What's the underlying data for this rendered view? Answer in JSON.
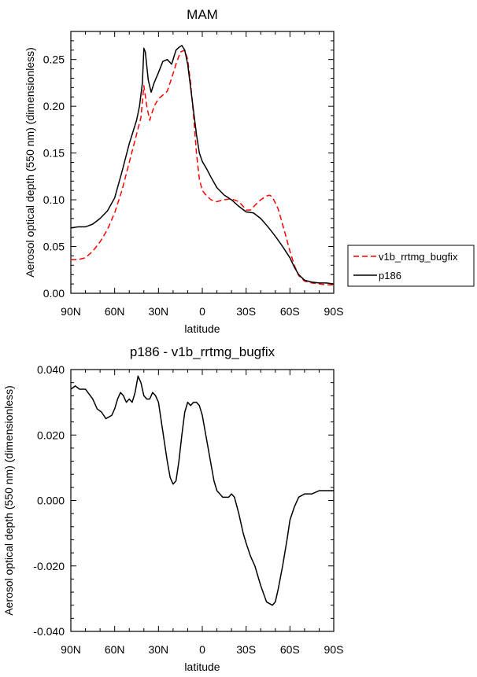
{
  "chart_data": [
    {
      "type": "line",
      "title": "MAM",
      "xlabel": "latitude",
      "ylabel": "Aerosol optical depth (550 nm) (dimensionless)",
      "xlim": [
        90,
        -90
      ],
      "ylim": [
        0,
        0.28
      ],
      "x_ticks": [
        90,
        60,
        30,
        0,
        -30,
        -60,
        -90
      ],
      "x_tick_labels": [
        "90N",
        "60N",
        "30N",
        "0",
        "30S",
        "60S",
        "90S"
      ],
      "y_ticks": [
        0,
        0.05,
        0.1,
        0.15,
        0.2,
        0.25
      ],
      "y_tick_labels": [
        "0.00",
        "0.05",
        "0.10",
        "0.15",
        "0.20",
        "0.25"
      ],
      "legend_position": "right",
      "series": [
        {
          "name": "v1b_rrtmg_bugfix",
          "color": "#ff0000",
          "dash": "dashed",
          "x": [
            90,
            85,
            80,
            75,
            70,
            65,
            60,
            55,
            50,
            45,
            42,
            40,
            38,
            36,
            33,
            30,
            27,
            24,
            21,
            18,
            15,
            12,
            10,
            8,
            6,
            4,
            2,
            0,
            -3,
            -6,
            -10,
            -15,
            -20,
            -25,
            -28,
            -30,
            -33,
            -36,
            -40,
            -44,
            -46,
            -48,
            -52,
            -56,
            -60,
            -63,
            -66,
            -70,
            -75,
            -80,
            -85,
            -90
          ],
          "values": [
            0.036,
            0.036,
            0.038,
            0.045,
            0.055,
            0.068,
            0.086,
            0.11,
            0.14,
            0.17,
            0.188,
            0.222,
            0.2,
            0.185,
            0.2,
            0.208,
            0.212,
            0.216,
            0.23,
            0.245,
            0.258,
            0.26,
            0.25,
            0.225,
            0.19,
            0.15,
            0.122,
            0.11,
            0.104,
            0.1,
            0.098,
            0.1,
            0.101,
            0.098,
            0.093,
            0.089,
            0.089,
            0.094,
            0.1,
            0.104,
            0.105,
            0.103,
            0.09,
            0.068,
            0.045,
            0.03,
            0.019,
            0.013,
            0.011,
            0.01,
            0.009,
            0.009
          ]
        },
        {
          "name": "p186",
          "color": "#000000",
          "dash": "solid",
          "x": [
            90,
            85,
            80,
            75,
            70,
            65,
            60,
            55,
            50,
            47,
            45,
            43,
            41,
            40,
            39,
            37,
            35,
            33,
            30,
            27,
            24,
            21,
            18,
            16,
            14,
            12,
            10,
            8,
            6,
            4,
            2,
            0,
            -3,
            -6,
            -10,
            -15,
            -20,
            -25,
            -30,
            -35,
            -40,
            -45,
            -50,
            -55,
            -60,
            -63,
            -66,
            -70,
            -75,
            -80,
            -85,
            -90
          ],
          "values": [
            0.07,
            0.071,
            0.071,
            0.074,
            0.08,
            0.088,
            0.102,
            0.13,
            0.16,
            0.175,
            0.185,
            0.2,
            0.225,
            0.262,
            0.258,
            0.228,
            0.215,
            0.225,
            0.236,
            0.248,
            0.25,
            0.245,
            0.26,
            0.263,
            0.265,
            0.26,
            0.245,
            0.22,
            0.195,
            0.17,
            0.15,
            0.141,
            0.133,
            0.124,
            0.113,
            0.105,
            0.1,
            0.093,
            0.087,
            0.086,
            0.08,
            0.071,
            0.061,
            0.05,
            0.038,
            0.028,
            0.02,
            0.014,
            0.012,
            0.011,
            0.011,
            0.01
          ]
        }
      ]
    },
    {
      "type": "line",
      "title": "p186 - v1b_rrtmg_bugfix",
      "xlabel": "latitude",
      "ylabel": "Aerosol optical depth (550 nm) (dimensionless)",
      "xlim": [
        90,
        -90
      ],
      "ylim": [
        -0.04,
        0.04
      ],
      "x_ticks": [
        90,
        60,
        30,
        0,
        -30,
        -60,
        -90
      ],
      "x_tick_labels": [
        "90N",
        "60N",
        "30N",
        "0",
        "30S",
        "60S",
        "90S"
      ],
      "y_ticks": [
        -0.04,
        -0.02,
        0,
        0.02,
        0.04
      ],
      "y_tick_labels": [
        "-0.040",
        "-0.020",
        "0.000",
        "0.020",
        "0.040"
      ],
      "series": [
        {
          "name": "p186 - v1b_rrtmg_bugfix",
          "color": "#000000",
          "dash": "solid",
          "x": [
            90,
            87,
            84,
            80,
            75,
            72,
            69,
            66,
            62,
            60,
            58,
            56,
            54,
            52,
            50,
            48,
            46,
            44,
            42,
            40,
            38,
            36,
            34,
            32,
            30,
            28,
            26,
            24,
            22,
            20,
            18,
            16,
            14,
            12,
            10,
            8,
            6,
            4,
            2,
            0,
            -2,
            -4,
            -6,
            -8,
            -10,
            -12,
            -14,
            -16,
            -18,
            -20,
            -22,
            -25,
            -28,
            -30,
            -33,
            -36,
            -40,
            -44,
            -48,
            -50,
            -52,
            -55,
            -58,
            -60,
            -63,
            -66,
            -70,
            -75,
            -80,
            -85,
            -90
          ],
          "values": [
            0.034,
            0.035,
            0.034,
            0.034,
            0.031,
            0.028,
            0.027,
            0.025,
            0.026,
            0.028,
            0.031,
            0.033,
            0.032,
            0.03,
            0.031,
            0.03,
            0.033,
            0.038,
            0.036,
            0.032,
            0.031,
            0.031,
            0.033,
            0.032,
            0.03,
            0.024,
            0.018,
            0.012,
            0.007,
            0.005,
            0.006,
            0.012,
            0.02,
            0.027,
            0.03,
            0.029,
            0.03,
            0.03,
            0.029,
            0.026,
            0.021,
            0.016,
            0.011,
            0.006,
            0.003,
            0.002,
            0.001,
            0.001,
            0.001,
            0.002,
            0.001,
            -0.004,
            -0.01,
            -0.013,
            -0.017,
            -0.02,
            -0.026,
            -0.031,
            -0.032,
            -0.031,
            -0.027,
            -0.02,
            -0.012,
            -0.006,
            -0.002,
            0.001,
            0.002,
            0.002,
            0.003,
            0.003,
            0.003
          ]
        }
      ]
    }
  ]
}
